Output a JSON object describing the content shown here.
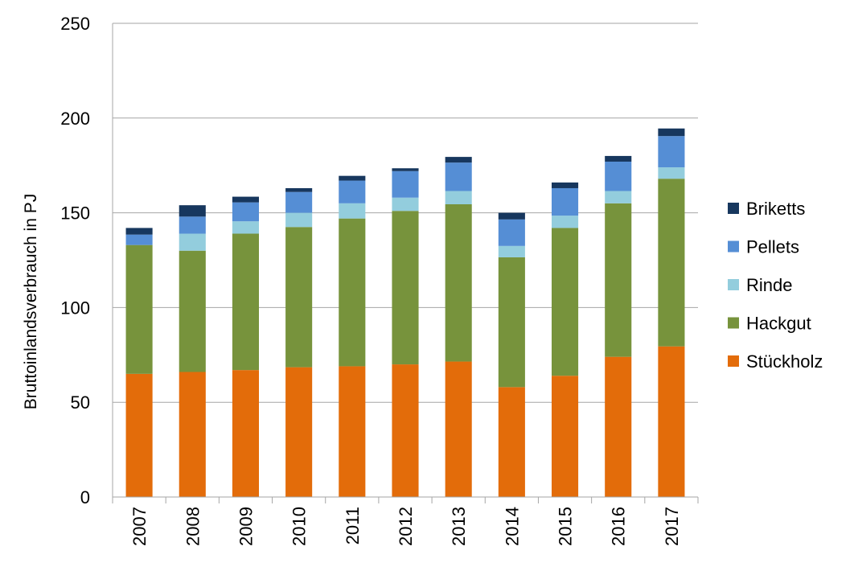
{
  "chart_data": {
    "type": "bar",
    "stacked": true,
    "title": "",
    "xlabel": "",
    "ylabel": "Bruttoinlandsverbrauch in PJ",
    "ylim": [
      0,
      250
    ],
    "yticks": [
      0,
      50,
      100,
      150,
      200,
      250
    ],
    "grid": true,
    "legend_position": "right",
    "categories": [
      "2007",
      "2008",
      "2009",
      "2010",
      "2011",
      "2012",
      "2013",
      "2014",
      "2015",
      "2016",
      "2017"
    ],
    "series": [
      {
        "name": "Stückholz",
        "color": "#E36C0A",
        "values": [
          65,
          66,
          67,
          68.5,
          69,
          70,
          71.5,
          58,
          64,
          74,
          79.5
        ]
      },
      {
        "name": "Hackgut",
        "color": "#77933C",
        "values": [
          68,
          64,
          72,
          74,
          78,
          81,
          83,
          68.5,
          78,
          81,
          88.5
        ]
      },
      {
        "name": "Rinde",
        "color": "#93CDDD",
        "values": [
          0,
          9,
          6.5,
          7.5,
          8,
          7,
          7,
          6,
          6.5,
          6.5,
          6
        ]
      },
      {
        "name": "Pellets",
        "color": "#558ED5",
        "values": [
          5.5,
          9,
          10,
          11,
          12,
          14,
          15,
          14,
          14.5,
          15.5,
          16.5
        ]
      },
      {
        "name": "Briketts",
        "color": "#17375E",
        "values": [
          3.5,
          6,
          3,
          2,
          2.5,
          1.5,
          3,
          3.5,
          3,
          3,
          4
        ]
      }
    ],
    "legend_order": [
      "Briketts",
      "Pellets",
      "Rinde",
      "Hackgut",
      "Stückholz"
    ]
  }
}
